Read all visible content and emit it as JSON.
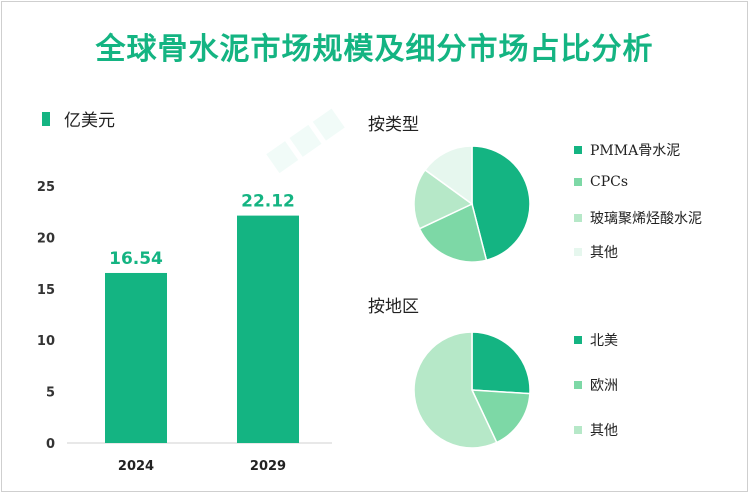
{
  "title": "全球骨水泥市场规模及细分市场占比分析",
  "colors": {
    "primary": "#14b482",
    "medium": "#7dd8a6",
    "light": "#b6e8c8",
    "lightest": "#e6f7ee"
  },
  "bar_section": {
    "unit": "亿美元"
  },
  "type_section": {
    "title": "按类型"
  },
  "region_section": {
    "title": "按地区"
  },
  "chart_data": [
    {
      "type": "bar",
      "title": "",
      "unit": "亿美元",
      "categories": [
        "2024",
        "2029"
      ],
      "values": [
        16.54,
        22.12
      ],
      "value_labels": [
        "16.54",
        "22.12"
      ],
      "ylim": [
        0,
        25
      ],
      "yticks": [
        "0",
        "5",
        "10",
        "15",
        "20",
        "25"
      ],
      "grid": false
    },
    {
      "type": "pie",
      "title": "按类型",
      "labels": [
        "PMMA骨水泥",
        "CPCs",
        "玻璃聚烯烃酸水泥",
        "其他"
      ],
      "values": [
        46,
        22,
        17,
        15
      ],
      "colors": [
        "#14b482",
        "#7dd8a6",
        "#b6e8c8",
        "#e6f7ee"
      ],
      "legend": "right"
    },
    {
      "type": "pie",
      "title": "按地区",
      "labels": [
        "北美",
        "欧洲",
        "其他"
      ],
      "values": [
        26,
        17,
        57
      ],
      "colors": [
        "#14b482",
        "#7dd8a6",
        "#b6e8c8"
      ],
      "legend": "right"
    }
  ]
}
